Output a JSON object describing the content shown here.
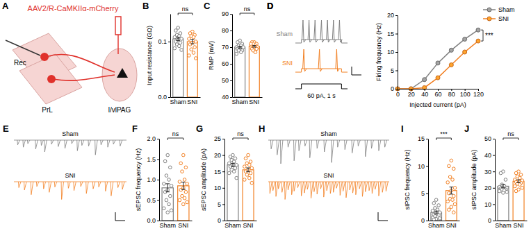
{
  "diagram": {
    "panel_label": "A",
    "title": "AAV2/R-CaMKIIα-mCherry",
    "labels": {
      "rec": "Rec",
      "source": "PrL",
      "target": "l/vlPAG"
    }
  },
  "traces": [
    {
      "panel_label": "D",
      "type": "spikes",
      "stimulus": {
        "label": "60 pA, 1 s",
        "current": 60,
        "duration": 1
      },
      "rows": [
        {
          "name": "Sham",
          "color": "#808080",
          "spike_times": [
            0.04,
            0.19,
            0.34,
            0.5,
            0.65,
            0.8,
            0.95
          ]
        },
        {
          "name": "SNI",
          "color": "#f28023",
          "spike_times": [
            0.06,
            0.45,
            0.88
          ]
        }
      ]
    },
    {
      "panel_label": "E",
      "type": "events",
      "xlim": [
        0,
        10
      ],
      "ylim": [
        0,
        40
      ],
      "rows": [
        {
          "name": "Sham",
          "color": "#808080",
          "times": [
            0.3,
            0.8,
            1.2,
            1.9,
            2.4,
            2.7,
            3.3,
            3.9,
            4.5,
            5.1,
            5.6,
            6.0,
            6.6,
            7.2,
            7.7,
            8.3,
            8.8,
            9.4
          ],
          "amplitudes": [
            8,
            12,
            6,
            15,
            9,
            20,
            7,
            11,
            14,
            6,
            18,
            9,
            10,
            25,
            8,
            12,
            7,
            10
          ]
        },
        {
          "name": "SNI",
          "color": "#f28023",
          "times": [
            0.4,
            0.9,
            1.5,
            2.0,
            2.6,
            3.1,
            3.6,
            4.2,
            4.8,
            5.3,
            5.9,
            6.4,
            7.0,
            7.5,
            8.1,
            8.6,
            9.2,
            9.6
          ],
          "amplitudes": [
            10,
            14,
            22,
            8,
            12,
            18,
            9,
            30,
            11,
            15,
            8,
            20,
            12,
            9,
            16,
            24,
            10,
            13
          ]
        }
      ]
    },
    {
      "panel_label": "H",
      "type": "events",
      "xlim": [
        0,
        10
      ],
      "ylim": [
        0,
        40
      ],
      "rows": [
        {
          "name": "Sham",
          "color": "#808080",
          "times": [
            0.2,
            0.7,
            1.0,
            1.6,
            2.1,
            2.5,
            3.0,
            3.4,
            4.0,
            4.6,
            5.2,
            5.7,
            6.3,
            6.9,
            7.4,
            8.0,
            8.5,
            9.1,
            9.6
          ],
          "amplitudes": [
            15,
            25,
            40,
            12,
            35,
            18,
            10,
            30,
            14,
            20,
            38,
            12,
            16,
            22,
            10,
            28,
            14,
            18,
            12
          ]
        },
        {
          "name": "SNI",
          "color": "#f28023",
          "times": [
            0.1,
            0.35,
            0.6,
            0.8,
            1.1,
            1.35,
            1.6,
            1.9,
            2.1,
            2.4,
            2.7,
            2.95,
            3.2,
            3.5,
            3.75,
            4.0,
            4.3,
            4.55,
            4.8,
            5.1,
            5.35,
            5.6,
            5.9,
            6.15,
            6.4,
            6.7,
            6.95,
            7.2,
            7.5,
            7.75,
            8.0,
            8.3,
            8.55,
            8.8,
            9.1,
            9.4,
            9.7
          ],
          "amplitudes": [
            20,
            15,
            25,
            12,
            18,
            30,
            14,
            22,
            16,
            10,
            24,
            19,
            13,
            28,
            17,
            21,
            12,
            26,
            15,
            20,
            18,
            11,
            23,
            16,
            27,
            14,
            19,
            22,
            12,
            25,
            17,
            15,
            20,
            13,
            24,
            18,
            16
          ]
        }
      ]
    }
  ],
  "chart_data": [
    {
      "panel_label": "B",
      "type": "bar",
      "categories": [
        "Sham",
        "SNI"
      ],
      "values": [
        0.105,
        0.1
      ],
      "errors": [
        0.003,
        0.004
      ],
      "points": [
        [
          0.125,
          0.12,
          0.115,
          0.112,
          0.11,
          0.108,
          0.105,
          0.103,
          0.1,
          0.098,
          0.095,
          0.092,
          0.088,
          0.085
        ],
        [
          0.118,
          0.115,
          0.112,
          0.11,
          0.108,
          0.105,
          0.1,
          0.098,
          0.095,
          0.09,
          0.086,
          0.08,
          0.075,
          0.07
        ]
      ],
      "colors": [
        "#808080",
        "#f28023"
      ],
      "ylabel": "Input resistance (GΩ)",
      "ylim": [
        0,
        0.15
      ],
      "yticks": [
        {
          "value": 0,
          "label": "0.0"
        },
        {
          "value": 0.1,
          "label": "0.1"
        }
      ],
      "annotation": "ns"
    },
    {
      "panel_label": "C",
      "type": "bar",
      "categories": [
        "Sham",
        "SNI"
      ],
      "values": [
        70,
        70.5
      ],
      "errors": [
        0.6,
        0.5
      ],
      "points": [
        [
          74,
          73,
          72,
          71,
          71,
          70,
          70,
          69,
          69,
          68,
          68,
          67,
          66
        ],
        [
          73,
          73,
          72,
          72,
          71,
          71,
          70,
          70,
          69,
          69,
          68,
          67,
          72
        ]
      ],
      "colors": [
        "#808080",
        "#f28023"
      ],
      "ylabel": "RMP (mV)",
      "ylim": [
        40,
        90
      ],
      "yticks": [
        40,
        50,
        60,
        70,
        80,
        90
      ],
      "annotation": "ns"
    },
    {
      "panel_label": "D",
      "type": "line",
      "x": [
        0,
        20,
        40,
        60,
        80,
        100,
        120
      ],
      "series": [
        {
          "name": "Sham",
          "color": "#808080",
          "values": [
            0,
            0,
            2.5,
            7,
            10.5,
            13.5,
            16
          ]
        },
        {
          "name": "SNI",
          "color": "#f28023",
          "values": [
            0,
            0,
            0.3,
            3,
            6.5,
            10,
            13
          ]
        }
      ],
      "marker": "circle",
      "xlabel": "Injected current (pA)",
      "ylabel": "Firing frequency (Hz)",
      "xlim": [
        0,
        120
      ],
      "xticks": [
        0,
        20,
        40,
        60,
        80,
        100,
        120
      ],
      "ylim": [
        0,
        20
      ],
      "yticks": [
        0,
        5,
        10,
        15,
        20
      ],
      "legend": "upper right",
      "annotation": "***"
    },
    {
      "panel_label": "F",
      "type": "bar",
      "categories": [
        "Sham",
        "SNI"
      ],
      "values": [
        0.8,
        0.85
      ],
      "errors": [
        0.1,
        0.09
      ],
      "points": [
        [
          1.6,
          1.45,
          1.3,
          1.1,
          1.0,
          0.9,
          0.85,
          0.75,
          0.7,
          0.6,
          0.5,
          0.4,
          0.3,
          0.25,
          0.2
        ],
        [
          1.6,
          1.4,
          1.3,
          1.2,
          1.0,
          0.95,
          0.9,
          0.8,
          0.75,
          0.7,
          0.6,
          0.55,
          0.5,
          0.45,
          0.4
        ]
      ],
      "colors": [
        "#808080",
        "#f28023"
      ],
      "ylabel": "sEPSC frequency (Hz)",
      "ylim": [
        0,
        2
      ],
      "yticks": [
        {
          "value": 0,
          "label": "0.0"
        },
        {
          "value": 0.5,
          "label": "0.5"
        },
        {
          "value": 1,
          "label": "1.0"
        },
        {
          "value": 1.5,
          "label": "1.5"
        },
        {
          "value": 2,
          "label": "2.0"
        }
      ],
      "annotation": "ns"
    },
    {
      "panel_label": "G",
      "type": "bar",
      "categories": [
        "Sham",
        "SNI"
      ],
      "values": [
        17,
        15.5
      ],
      "errors": [
        0.5,
        0.6
      ],
      "points": [
        [
          20,
          19.5,
          19,
          18.5,
          18,
          17.5,
          17,
          17,
          16.5,
          16,
          15.5,
          15,
          14.5,
          13
        ],
        [
          20,
          19,
          18,
          17.5,
          17,
          16.5,
          16,
          15.5,
          15,
          14.5,
          14,
          13,
          12.5,
          11.5
        ]
      ],
      "colors": [
        "#808080",
        "#f28023"
      ],
      "ylabel": "sEPSC amplitude (pA)",
      "ylim": [
        0,
        25
      ],
      "yticks": [
        0,
        5,
        10,
        15,
        20,
        25
      ],
      "annotation": "ns"
    },
    {
      "panel_label": "I",
      "type": "bar",
      "categories": [
        "Sham",
        "SNI"
      ],
      "values": [
        1.5,
        5.5
      ],
      "errors": [
        0.25,
        0.65
      ],
      "points": [
        [
          3.8,
          3.2,
          2.8,
          2.3,
          2.0,
          1.8,
          1.5,
          1.3,
          1.1,
          1.0,
          0.8,
          0.6,
          0.5,
          0.4,
          0.3,
          0.2
        ],
        [
          11,
          10,
          9.5,
          8,
          7.5,
          7,
          6,
          5.5,
          5,
          4.5,
          4,
          3.8,
          3.5,
          3,
          2.5,
          2,
          1.5
        ]
      ],
      "colors": [
        "#808080",
        "#f28023"
      ],
      "ylabel": "sIPSC frequency (Hz)",
      "ylim": [
        0,
        15
      ],
      "yticks": [
        0,
        5,
        10,
        15
      ],
      "annotation": "***"
    },
    {
      "panel_label": "J",
      "type": "bar",
      "categories": [
        "Sham",
        "SNI"
      ],
      "values": [
        21,
        24
      ],
      "errors": [
        1.0,
        0.9
      ],
      "points": [
        [
          30,
          29,
          25,
          22,
          21,
          20.5,
          20,
          20,
          19.5,
          19,
          19,
          18.5,
          18,
          17.5,
          17
        ],
        [
          30,
          29,
          28,
          27,
          26,
          25,
          24.5,
          24,
          23.5,
          23,
          22.5,
          22,
          21,
          20,
          19,
          18
        ]
      ],
      "colors": [
        "#808080",
        "#f28023"
      ],
      "ylabel": "sIPSC amplitude (pA)",
      "ylim": [
        0,
        50
      ],
      "yticks": [
        0,
        10,
        20,
        30,
        40,
        50
      ],
      "annotation": "ns"
    }
  ]
}
